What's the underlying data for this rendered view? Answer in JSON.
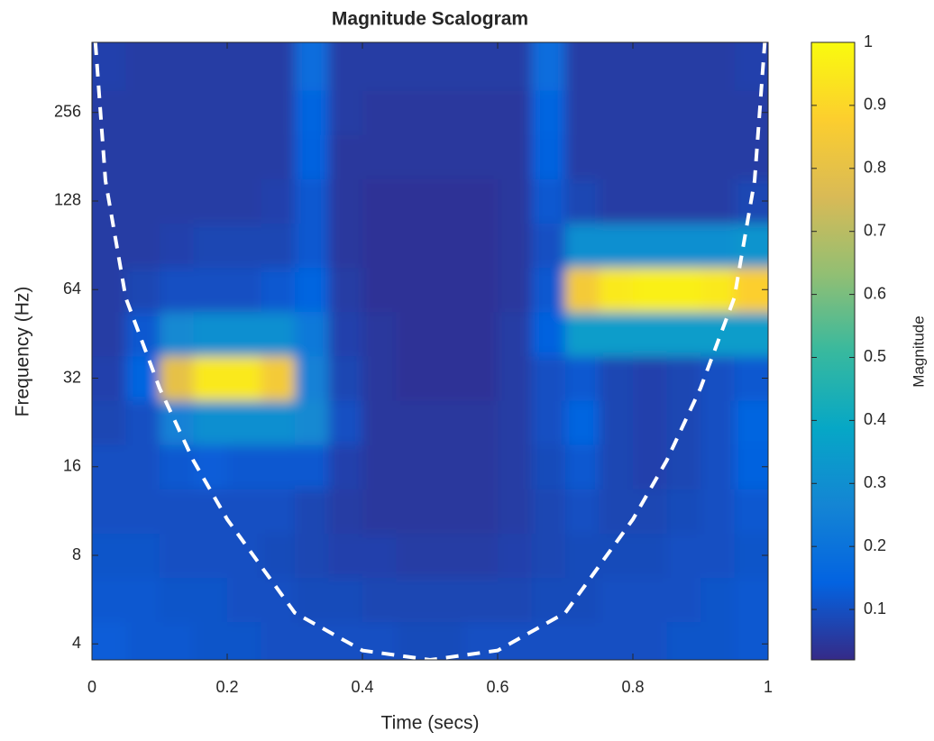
{
  "chart_data": {
    "type": "scalogram",
    "title": "Magnitude Scalogram",
    "xlabel": "Time (secs)",
    "ylabel": "Frequency (Hz)",
    "colorbar_label": "Magnitude",
    "xlim": [
      0,
      1
    ],
    "xticks": [
      0,
      0.2,
      0.4,
      0.6,
      0.8,
      1
    ],
    "ylim": [
      3.53,
      443
    ],
    "yscale": "log2",
    "yticks": [
      4,
      8,
      16,
      32,
      64,
      128,
      256
    ],
    "clim": [
      0.02,
      1
    ],
    "cticks": [
      0.1,
      0.2,
      0.3,
      0.4,
      0.5,
      0.6,
      0.7,
      0.8,
      0.9,
      1
    ],
    "colormap": [
      "#352a87",
      "#0363e1",
      "#1485d4",
      "#06a7c6",
      "#38b99e",
      "#92bf73",
      "#d9ba56",
      "#fcce2e",
      "#f9fb0e"
    ],
    "x": [
      0.025,
      0.075,
      0.125,
      0.175,
      0.225,
      0.275,
      0.325,
      0.375,
      0.425,
      0.475,
      0.525,
      0.575,
      0.625,
      0.675,
      0.725,
      0.775,
      0.825,
      0.875,
      0.925,
      0.975
    ],
    "y": [
      4,
      5.66,
      8,
      11.3,
      16,
      22.6,
      32,
      45.3,
      64,
      90.5,
      128,
      181,
      256,
      362
    ],
    "values": [
      [
        0.13,
        0.12,
        0.12,
        0.11,
        0.11,
        0.1,
        0.1,
        0.1,
        0.1,
        0.09,
        0.09,
        0.1,
        0.1,
        0.1,
        0.1,
        0.1,
        0.1,
        0.11,
        0.11,
        0.12
      ],
      [
        0.12,
        0.12,
        0.11,
        0.11,
        0.1,
        0.1,
        0.09,
        0.09,
        0.08,
        0.08,
        0.08,
        0.08,
        0.08,
        0.09,
        0.09,
        0.1,
        0.1,
        0.1,
        0.11,
        0.12
      ],
      [
        0.11,
        0.11,
        0.1,
        0.1,
        0.1,
        0.09,
        0.08,
        0.07,
        0.07,
        0.06,
        0.06,
        0.06,
        0.07,
        0.08,
        0.09,
        0.09,
        0.09,
        0.1,
        0.1,
        0.11
      ],
      [
        0.1,
        0.1,
        0.1,
        0.1,
        0.1,
        0.1,
        0.08,
        0.06,
        0.05,
        0.05,
        0.05,
        0.05,
        0.06,
        0.08,
        0.1,
        0.08,
        0.08,
        0.09,
        0.1,
        0.12
      ],
      [
        0.1,
        0.1,
        0.12,
        0.13,
        0.12,
        0.12,
        0.12,
        0.07,
        0.05,
        0.05,
        0.05,
        0.05,
        0.06,
        0.09,
        0.12,
        0.08,
        0.07,
        0.08,
        0.1,
        0.14
      ],
      [
        0.08,
        0.1,
        0.25,
        0.3,
        0.3,
        0.3,
        0.28,
        0.1,
        0.05,
        0.05,
        0.05,
        0.05,
        0.06,
        0.1,
        0.15,
        0.08,
        0.07,
        0.08,
        0.1,
        0.15
      ],
      [
        0.07,
        0.15,
        0.8,
        0.95,
        0.95,
        0.85,
        0.25,
        0.08,
        0.05,
        0.04,
        0.04,
        0.04,
        0.06,
        0.1,
        0.12,
        0.08,
        0.07,
        0.08,
        0.1,
        0.12
      ],
      [
        0.06,
        0.12,
        0.28,
        0.3,
        0.3,
        0.3,
        0.22,
        0.07,
        0.05,
        0.04,
        0.04,
        0.04,
        0.06,
        0.14,
        0.35,
        0.35,
        0.35,
        0.35,
        0.35,
        0.35
      ],
      [
        0.06,
        0.08,
        0.1,
        0.1,
        0.1,
        0.12,
        0.15,
        0.06,
        0.04,
        0.04,
        0.04,
        0.04,
        0.05,
        0.12,
        0.85,
        0.95,
        0.97,
        0.97,
        0.95,
        0.88
      ],
      [
        0.06,
        0.06,
        0.07,
        0.08,
        0.08,
        0.08,
        0.12,
        0.05,
        0.04,
        0.04,
        0.04,
        0.04,
        0.05,
        0.1,
        0.3,
        0.3,
        0.3,
        0.3,
        0.3,
        0.32
      ],
      [
        0.06,
        0.06,
        0.06,
        0.06,
        0.06,
        0.07,
        0.12,
        0.05,
        0.04,
        0.04,
        0.04,
        0.04,
        0.05,
        0.12,
        0.08,
        0.06,
        0.06,
        0.06,
        0.06,
        0.08
      ],
      [
        0.06,
        0.06,
        0.06,
        0.06,
        0.06,
        0.06,
        0.14,
        0.05,
        0.05,
        0.05,
        0.05,
        0.05,
        0.05,
        0.14,
        0.06,
        0.06,
        0.06,
        0.06,
        0.06,
        0.06
      ],
      [
        0.06,
        0.06,
        0.06,
        0.06,
        0.06,
        0.06,
        0.15,
        0.06,
        0.05,
        0.05,
        0.05,
        0.05,
        0.05,
        0.15,
        0.06,
        0.06,
        0.06,
        0.06,
        0.06,
        0.06
      ],
      [
        0.07,
        0.06,
        0.06,
        0.06,
        0.06,
        0.06,
        0.18,
        0.06,
        0.06,
        0.06,
        0.06,
        0.06,
        0.06,
        0.18,
        0.06,
        0.06,
        0.06,
        0.06,
        0.06,
        0.07
      ]
    ],
    "coi": {
      "color": "#ffffff",
      "x": [
        0.005,
        0.02,
        0.05,
        0.1,
        0.15,
        0.2,
        0.3,
        0.4,
        0.5,
        0.6,
        0.7,
        0.8,
        0.85,
        0.9,
        0.95,
        0.98,
        0.995
      ],
      "y": [
        443,
        150,
        60,
        29.6,
        16.8,
        10.6,
        5.1,
        3.8,
        3.53,
        3.8,
        5.1,
        10.6,
        16.8,
        29.6,
        60,
        150,
        443
      ]
    }
  }
}
